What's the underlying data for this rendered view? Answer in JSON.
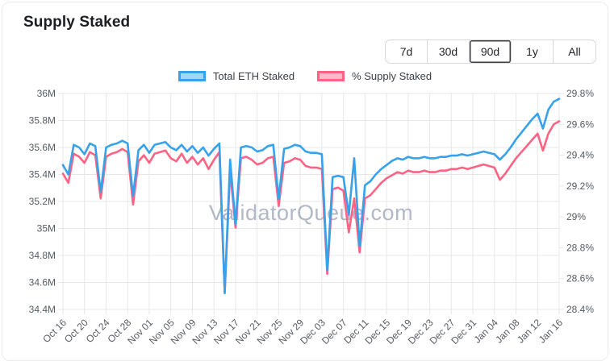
{
  "header": {
    "title": "Supply Staked"
  },
  "range_buttons": {
    "options": [
      "7d",
      "30d",
      "90d",
      "1y",
      "All"
    ],
    "selected": "90d"
  },
  "watermark": "ValidatorQueue.com",
  "colors": {
    "blue_line": "#36a2eb",
    "blue_fill": "rgba(54,162,235,0.45)",
    "pink_line": "#ff6384",
    "pink_fill": "rgba(255,99,132,0.45)",
    "grid": "#e7e7e7",
    "axis_text": "#565c63"
  },
  "chart_data": {
    "type": "line",
    "title": "Supply Staked",
    "legend_position": "top",
    "grid": true,
    "x_tick_every": 4,
    "x": [
      "Oct 16",
      "Oct 17",
      "Oct 18",
      "Oct 19",
      "Oct 20",
      "Oct 21",
      "Oct 22",
      "Oct 23",
      "Oct 24",
      "Oct 25",
      "Oct 26",
      "Oct 27",
      "Oct 28",
      "Oct 29",
      "Oct 30",
      "Oct 31",
      "Nov 01",
      "Nov 02",
      "Nov 03",
      "Nov 04",
      "Nov 05",
      "Nov 06",
      "Nov 07",
      "Nov 08",
      "Nov 09",
      "Nov 10",
      "Nov 11",
      "Nov 12",
      "Nov 13",
      "Nov 14",
      "Nov 15",
      "Nov 16",
      "Nov 17",
      "Nov 18",
      "Nov 19",
      "Nov 20",
      "Nov 21",
      "Nov 22",
      "Nov 23",
      "Nov 24",
      "Nov 25",
      "Nov 26",
      "Nov 27",
      "Nov 28",
      "Nov 29",
      "Nov 30",
      "Dec 01",
      "Dec 02",
      "Dec 03",
      "Dec 04",
      "Dec 05",
      "Dec 06",
      "Dec 07",
      "Dec 08",
      "Dec 09",
      "Dec 10",
      "Dec 11",
      "Dec 12",
      "Dec 13",
      "Dec 14",
      "Dec 15",
      "Dec 16",
      "Dec 17",
      "Dec 18",
      "Dec 19",
      "Dec 20",
      "Dec 21",
      "Dec 22",
      "Dec 23",
      "Dec 24",
      "Dec 25",
      "Dec 26",
      "Dec 27",
      "Dec 28",
      "Dec 29",
      "Dec 30",
      "Dec 31",
      "Jan 01",
      "Jan 02",
      "Jan 03",
      "Jan 04",
      "Jan 05",
      "Jan 06",
      "Jan 07",
      "Jan 08",
      "Jan 09",
      "Jan 10",
      "Jan 11",
      "Jan 12",
      "Jan 13",
      "Jan 14",
      "Jan 15",
      "Jan 16"
    ],
    "series": [
      {
        "name": "Total ETH Staked",
        "axis": "left",
        "color": "#36a2eb",
        "values": [
          35.47,
          35.4,
          35.62,
          35.6,
          35.55,
          35.63,
          35.61,
          35.27,
          35.6,
          35.62,
          35.63,
          35.65,
          35.63,
          35.24,
          35.58,
          35.62,
          35.56,
          35.62,
          35.63,
          35.64,
          35.6,
          35.58,
          35.62,
          35.57,
          35.61,
          35.56,
          35.6,
          35.54,
          35.59,
          35.63,
          34.52,
          35.51,
          35.03,
          35.6,
          35.61,
          35.6,
          35.57,
          35.58,
          35.61,
          35.62,
          35.22,
          35.59,
          35.6,
          35.62,
          35.61,
          35.57,
          35.56,
          35.56,
          35.55,
          34.69,
          35.38,
          35.39,
          35.38,
          35.1,
          35.52,
          34.87,
          35.32,
          35.35,
          35.4,
          35.44,
          35.47,
          35.5,
          35.52,
          35.51,
          35.53,
          35.52,
          35.52,
          35.53,
          35.52,
          35.52,
          35.53,
          35.53,
          35.54,
          35.54,
          35.55,
          35.54,
          35.55,
          35.56,
          35.57,
          35.56,
          35.55,
          35.51,
          35.55,
          35.6,
          35.66,
          35.71,
          35.76,
          35.81,
          35.85,
          35.74,
          35.88,
          35.94,
          35.96
        ]
      },
      {
        "name": "% Supply Staked",
        "axis": "right",
        "color": "#ff6384",
        "values": [
          29.28,
          29.22,
          29.41,
          29.39,
          29.35,
          29.42,
          29.4,
          29.12,
          29.39,
          29.41,
          29.42,
          29.44,
          29.42,
          29.08,
          29.36,
          29.4,
          29.35,
          29.41,
          29.42,
          29.43,
          29.38,
          29.36,
          29.41,
          29.35,
          29.39,
          29.34,
          29.38,
          29.31,
          29.37,
          29.42,
          28.51,
          29.3,
          28.93,
          29.38,
          29.39,
          29.37,
          29.34,
          29.35,
          29.38,
          29.39,
          29.07,
          29.35,
          29.36,
          29.38,
          29.37,
          29.33,
          29.32,
          29.32,
          29.31,
          28.63,
          29.18,
          29.19,
          29.17,
          28.9,
          29.12,
          28.77,
          29.12,
          29.14,
          29.18,
          29.22,
          29.25,
          29.27,
          29.29,
          29.28,
          29.3,
          29.29,
          29.29,
          29.3,
          29.29,
          29.29,
          29.3,
          29.3,
          29.31,
          29.31,
          29.32,
          29.31,
          29.32,
          29.33,
          29.34,
          29.33,
          29.32,
          29.24,
          29.28,
          29.33,
          29.38,
          29.42,
          29.46,
          29.5,
          29.54,
          29.43,
          29.54,
          29.6,
          29.62
        ]
      }
    ],
    "y_left": {
      "min": 34.4,
      "max": 36.0,
      "ticks": [
        {
          "v": 36.0,
          "label": "36M"
        },
        {
          "v": 35.8,
          "label": "35.8M"
        },
        {
          "v": 35.6,
          "label": "35.6M"
        },
        {
          "v": 35.4,
          "label": "35.4M"
        },
        {
          "v": 35.2,
          "label": "35.2M"
        },
        {
          "v": 35.0,
          "label": "35M"
        },
        {
          "v": 34.8,
          "label": "34.8M"
        },
        {
          "v": 34.6,
          "label": "34.6M"
        },
        {
          "v": 34.4,
          "label": "34.4M"
        }
      ]
    },
    "y_right": {
      "min": 28.4,
      "max": 29.8,
      "ticks": [
        {
          "v": 29.8,
          "label": "29.8%"
        },
        {
          "v": 29.6,
          "label": "29.6%"
        },
        {
          "v": 29.4,
          "label": "29.4%"
        },
        {
          "v": 29.2,
          "label": "29.2%"
        },
        {
          "v": 29.0,
          "label": "29%"
        },
        {
          "v": 28.8,
          "label": "28.8%"
        },
        {
          "v": 28.6,
          "label": "28.6%"
        },
        {
          "v": 28.4,
          "label": "28.4%"
        }
      ]
    }
  }
}
